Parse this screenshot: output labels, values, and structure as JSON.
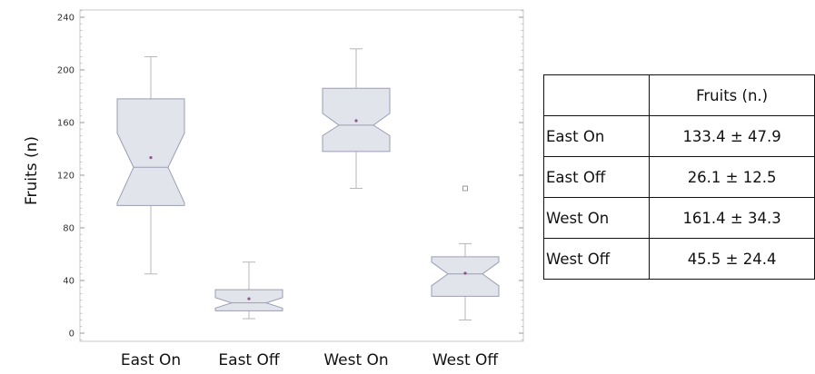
{
  "chart_data": {
    "type": "boxplot",
    "ylabel": "Fruits (n)",
    "xlabel": "",
    "ylim": [
      -5,
      245
    ],
    "y_ticks": [
      0,
      40,
      80,
      120,
      160,
      200,
      240
    ],
    "categories": [
      "East On",
      "East Off",
      "West On",
      "West Off"
    ],
    "boxes": [
      {
        "category": "East On",
        "whisker_low": 45,
        "q1": 97,
        "median": 126,
        "q3": 178,
        "whisker_high": 210,
        "mean": 133.4,
        "notch_low": 99,
        "notch_high": 152,
        "outliers": []
      },
      {
        "category": "East Off",
        "whisker_low": 11,
        "q1": 17,
        "median": 23,
        "q3": 33,
        "whisker_high": 54,
        "mean": 26.1,
        "notch_low": 19,
        "notch_high": 27,
        "outliers": []
      },
      {
        "category": "West On",
        "whisker_low": 110,
        "q1": 138,
        "median": 158,
        "q3": 186,
        "whisker_high": 216,
        "mean": 161.4,
        "notch_low": 150,
        "notch_high": 167,
        "outliers": []
      },
      {
        "category": "West Off",
        "whisker_low": 10,
        "q1": 28,
        "median": 45,
        "q3": 58,
        "whisker_high": 68,
        "mean": 45.5,
        "notch_low": 36,
        "notch_high": 54,
        "outliers": [
          110
        ]
      }
    ],
    "colors": {
      "box_fill": "#e2e4ec",
      "box_stroke": "#9a9db3",
      "whisker": "#b7b7b7",
      "mean_marker": "#8a5a8a",
      "outlier": "#9a9a9a"
    },
    "grid": false
  },
  "summary_table": {
    "header": [
      "",
      "Fruits (n.)"
    ],
    "rows": [
      {
        "label": "East On",
        "value": "133.4 ± 47.9"
      },
      {
        "label": "East Off",
        "value": "26.1 ± 12.5"
      },
      {
        "label": "West On",
        "value": "161.4 ± 34.3"
      },
      {
        "label": "West Off",
        "value": "45.5 ± 24.4"
      }
    ]
  }
}
